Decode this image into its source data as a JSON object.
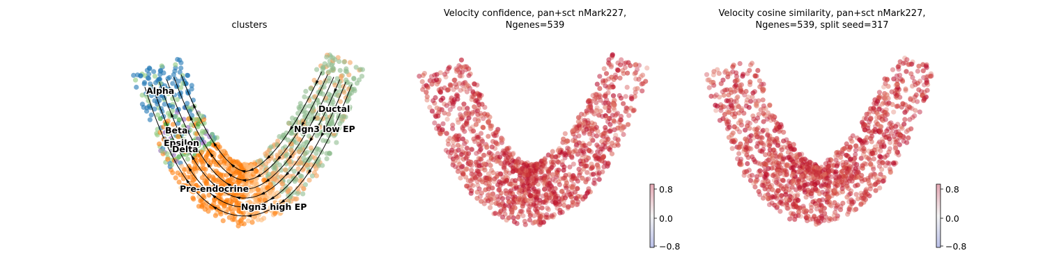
{
  "panels": [
    {
      "title_lines": [
        "clusters"
      ]
    },
    {
      "title_lines": [
        "Velocity confidence, pan+sct nMark227,",
        "Ngenes=539"
      ]
    },
    {
      "title_lines": [
        "Velocity cosine similarity, pan+sct nMark227,",
        "Ngenes=539, split seed=317"
      ]
    }
  ],
  "chart_data": [
    {
      "type": "scatter",
      "title": "clusters",
      "grid": false,
      "axes_visible": false,
      "overlay": "velocity streamlines with arrowheads",
      "clusters": [
        {
          "name": "Alpha",
          "color": "#1f77b4"
        },
        {
          "name": "Beta",
          "color": "#8fc97f"
        },
        {
          "name": "Epsilon",
          "color": "#9467bd"
        },
        {
          "name": "Delta",
          "color": "#2ca02c"
        },
        {
          "name": "Pre-endocrine",
          "color": "#ff7f0e"
        },
        {
          "name": "Ngn3 high EP",
          "color": "#ffbb78"
        },
        {
          "name": "Ngn3 low EP",
          "color": "#f4a460"
        },
        {
          "name": "Ductal",
          "color": "#8fbc8f"
        }
      ]
    },
    {
      "type": "scatter",
      "title": "Velocity confidence, pan+sct nMark227, Ngenes=539",
      "grid": false,
      "axes_visible": false,
      "colormap": "coolwarm",
      "colorbar": {
        "ticks": [
          "0.8",
          "0.0",
          "−0.8"
        ],
        "range": [
          -0.9,
          0.9
        ]
      },
      "typical_value": 0.85
    },
    {
      "type": "scatter",
      "title": "Velocity cosine similarity, pan+sct nMark227, Ngenes=539, split seed=317",
      "grid": false,
      "axes_visible": false,
      "colormap": "coolwarm",
      "colorbar": {
        "ticks": [
          "0.8",
          "0.0",
          "−0.8"
        ],
        "range": [
          -0.9,
          0.9
        ]
      },
      "typical_value": 0.85
    }
  ]
}
